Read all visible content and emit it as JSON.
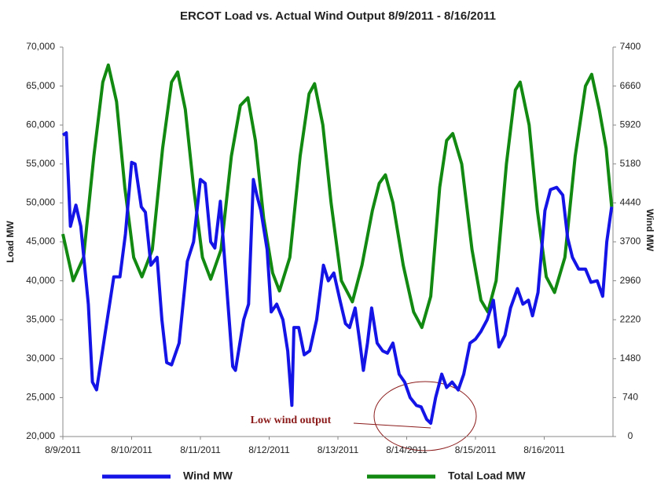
{
  "chart_data": {
    "type": "line",
    "title": "ERCOT Load vs. Actual Wind Output 8/9/2011 - 8/16/2011",
    "y_label": "Load MW",
    "y2_label": "Wind MW",
    "annotation": "Low wind output",
    "xlim": [
      0,
      8
    ],
    "xticks": [
      {
        "value": 0,
        "label": "8/9/2011"
      },
      {
        "value": 1,
        "label": "8/10/2011"
      },
      {
        "value": 2,
        "label": "8/11/2011"
      },
      {
        "value": 3,
        "label": "8/12/2011"
      },
      {
        "value": 4,
        "label": "8/13/2011"
      },
      {
        "value": 5,
        "label": "8/14/2011"
      },
      {
        "value": 6,
        "label": "8/15/2011"
      },
      {
        "value": 7,
        "label": "8/16/2011"
      }
    ],
    "ylim": [
      20000,
      70000
    ],
    "yticks": [
      {
        "value": 20000,
        "label": "20,000"
      },
      {
        "value": 25000,
        "label": "25,000"
      },
      {
        "value": 30000,
        "label": "30,000"
      },
      {
        "value": 35000,
        "label": "35,000"
      },
      {
        "value": 40000,
        "label": "40,000"
      },
      {
        "value": 45000,
        "label": "45,000"
      },
      {
        "value": 50000,
        "label": "50,000"
      },
      {
        "value": 55000,
        "label": "55,000"
      },
      {
        "value": 60000,
        "label": "60,000"
      },
      {
        "value": 65000,
        "label": "65,000"
      },
      {
        "value": 70000,
        "label": "70,000"
      }
    ],
    "y2lim": [
      0,
      7400
    ],
    "y2ticks": [
      0,
      740,
      1480,
      2220,
      2960,
      3700,
      4440,
      5180,
      5920,
      6660,
      7400
    ],
    "series": [
      {
        "name": "Wind MW",
        "color": "#1414e6",
        "axis": "y2",
        "x": [
          0,
          0.05,
          0.11,
          0.19,
          0.26,
          0.37,
          0.43,
          0.49,
          0.61,
          0.74,
          0.83,
          0.91,
          1.0,
          1.05,
          1.14,
          1.2,
          1.28,
          1.37,
          1.44,
          1.51,
          1.58,
          1.69,
          1.81,
          1.9,
          2.0,
          2.07,
          2.15,
          2.21,
          2.29,
          2.35,
          2.47,
          2.51,
          2.63,
          2.7,
          2.77,
          2.82,
          2.88,
          2.97,
          3.03,
          3.11,
          3.2,
          3.27,
          3.33,
          3.36,
          3.43,
          3.51,
          3.59,
          3.69,
          3.79,
          3.86,
          3.94,
          4.03,
          4.11,
          4.17,
          4.25,
          4.32,
          4.37,
          4.43,
          4.49,
          4.57,
          4.65,
          4.72,
          4.8,
          4.89,
          4.97,
          5.05,
          5.14,
          5.21,
          5.29,
          5.35,
          5.42,
          5.51,
          5.58,
          5.66,
          5.75,
          5.83,
          5.92,
          6.0,
          6.08,
          6.17,
          6.26,
          6.34,
          6.43,
          6.51,
          6.61,
          6.69,
          6.77,
          6.83,
          6.91,
          7.01,
          7.09,
          7.18,
          7.27,
          7.34,
          7.41,
          7.5,
          7.6,
          7.68,
          7.77,
          7.85,
          7.91,
          7.98
        ],
        "values": [
          5728,
          5772,
          3996,
          4396,
          3996,
          2516,
          1036,
          888,
          1924,
          3034,
          3034,
          3848,
          5210,
          5180,
          4366,
          4262,
          3256,
          3404,
          2220,
          1406,
          1362,
          1776,
          3330,
          3700,
          4884,
          4810,
          3700,
          3582,
          4470,
          3404,
          1332,
          1258,
          2220,
          2516,
          4884,
          4588,
          4292,
          3552,
          2368,
          2516,
          2220,
          1628,
          592,
          2072,
          2072,
          1554,
          1628,
          2220,
          3256,
          2960,
          3108,
          2590,
          2146,
          2072,
          2442,
          1776,
          1258,
          1776,
          2442,
          1776,
          1628,
          1584,
          1776,
          1184,
          1036,
          740,
          592,
          562,
          326,
          252,
          740,
          1184,
          932,
          1036,
          884,
          1184,
          1776,
          1850,
          1998,
          2220,
          2590,
          1702,
          1924,
          2442,
          2812,
          2516,
          2590,
          2294,
          2738,
          4292,
          4692,
          4736,
          4588,
          3774,
          3404,
          3182,
          3182,
          2930,
          2960,
          2664,
          3700,
          4366
        ]
      },
      {
        "name": "Total Load MW",
        "color": "#128a12",
        "x": [
          0,
          0.15,
          0.3,
          0.45,
          0.58,
          0.66,
          0.78,
          0.9,
          1.03,
          1.15,
          1.3,
          1.45,
          1.58,
          1.67,
          1.78,
          1.9,
          2.03,
          2.15,
          2.3,
          2.45,
          2.58,
          2.69,
          2.8,
          2.92,
          3.05,
          3.15,
          3.3,
          3.45,
          3.58,
          3.66,
          3.78,
          3.9,
          4.05,
          4.21,
          4.35,
          4.5,
          4.6,
          4.69,
          4.8,
          4.95,
          5.1,
          5.22,
          5.35,
          5.48,
          5.58,
          5.67,
          5.8,
          5.95,
          6.08,
          6.18,
          6.3,
          6.45,
          6.58,
          6.65,
          6.78,
          6.9,
          7.03,
          7.15,
          7.3,
          7.45,
          7.6,
          7.69,
          7.8,
          7.9,
          7.98
        ],
        "values": [
          46000,
          40000,
          43000,
          56000,
          65500,
          67700,
          63000,
          52000,
          43000,
          40500,
          44000,
          57000,
          65500,
          66800,
          62000,
          52000,
          43000,
          40200,
          44000,
          56000,
          62500,
          63500,
          58000,
          48000,
          41000,
          38700,
          43000,
          56000,
          64000,
          65300,
          60000,
          50000,
          40000,
          37300,
          42000,
          49000,
          52500,
          53600,
          50000,
          42000,
          36000,
          34000,
          38000,
          52000,
          58000,
          58900,
          55000,
          44000,
          37500,
          36000,
          40000,
          55000,
          64500,
          65500,
          60000,
          49000,
          40500,
          38500,
          43000,
          56000,
          65000,
          66500,
          62000,
          57000,
          49500
        ]
      }
    ]
  }
}
